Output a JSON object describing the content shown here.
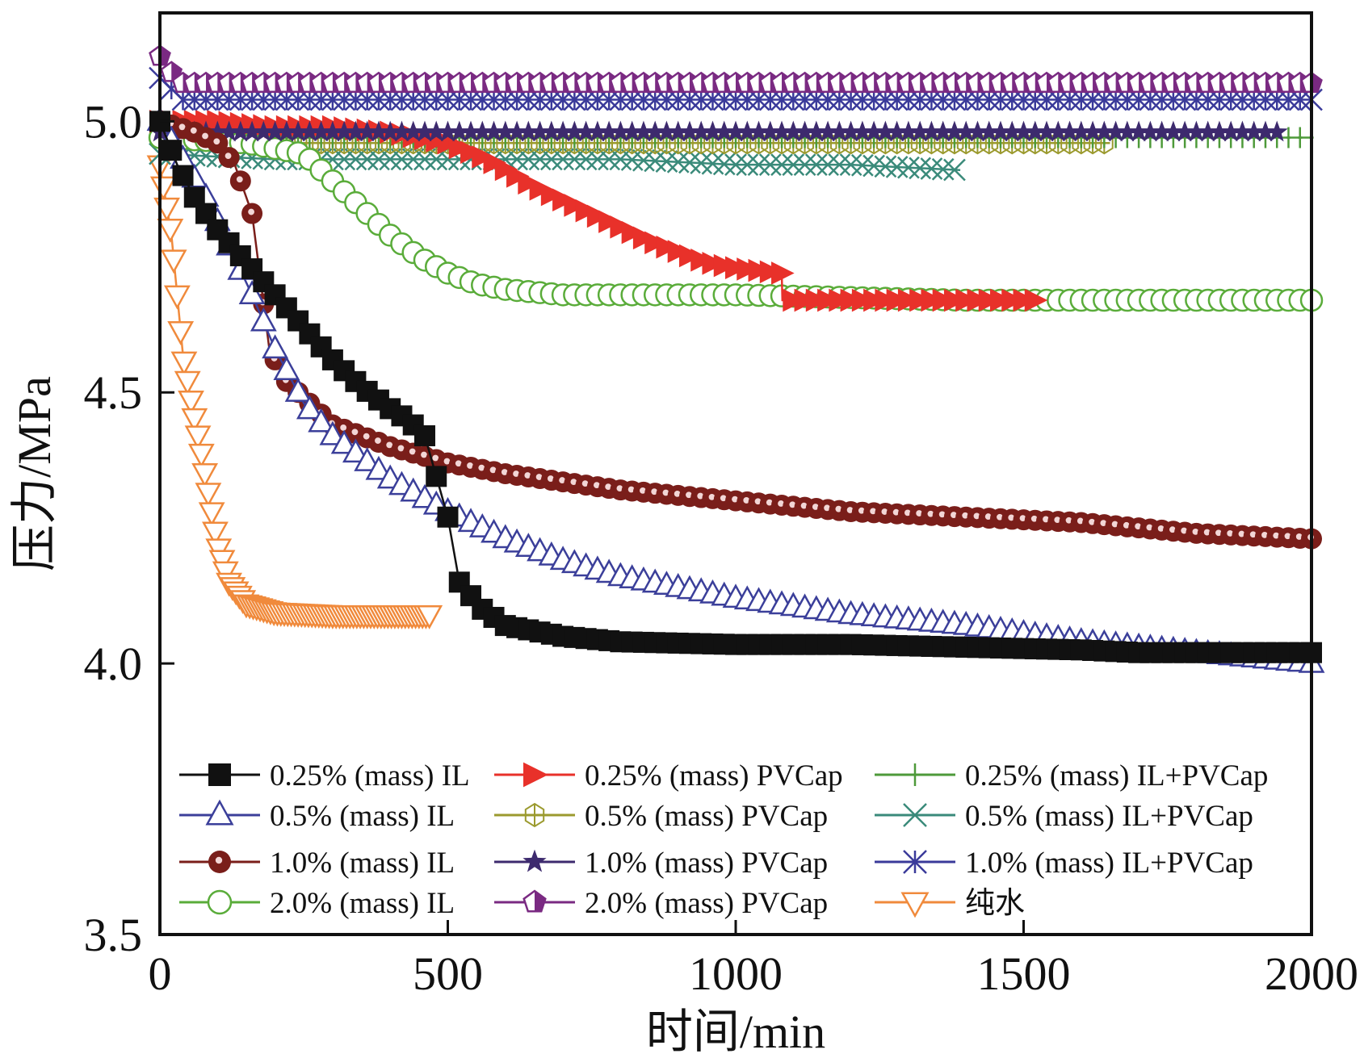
{
  "chart_data": {
    "type": "line",
    "title": "",
    "xlabel": "时间/min",
    "ylabel": "压力/MPa",
    "xlim": [
      0,
      2000
    ],
    "ylim": [
      3.5,
      5.2
    ],
    "xticks": [
      0,
      500,
      1000,
      1500,
      2000
    ],
    "xtick_labels": [
      "0",
      "500",
      "1000",
      "1500",
      "2000"
    ],
    "yticks": [
      3.5,
      4.0,
      4.5,
      5.0
    ],
    "ytick_labels": [
      "3.5",
      "4.0",
      "4.5",
      "5.0"
    ],
    "grid": false,
    "legend_position": "bottom-inside",
    "series": [
      {
        "name": "0.25% (mass) IL",
        "color": "#111111",
        "marker": "square-filled",
        "x": [
          0,
          30,
          60,
          100,
          150,
          200,
          250,
          300,
          350,
          400,
          430,
          460,
          500,
          520,
          560,
          600,
          700,
          800,
          1000,
          1200,
          1400,
          1600,
          1700,
          1800,
          2000
        ],
        "y": [
          5.0,
          4.92,
          4.86,
          4.8,
          4.74,
          4.68,
          4.62,
          4.56,
          4.51,
          4.47,
          4.45,
          4.42,
          4.27,
          4.15,
          4.1,
          4.07,
          4.05,
          4.04,
          4.035,
          4.035,
          4.03,
          4.025,
          4.02,
          4.02,
          4.02
        ]
      },
      {
        "name": "0.5% (mass) IL",
        "color": "#3b3f9a",
        "marker": "triangle-up-open",
        "x": [
          0,
          40,
          80,
          120,
          160,
          200,
          250,
          300,
          350,
          400,
          450,
          500,
          600,
          700,
          800,
          1000,
          1200,
          1400,
          1600,
          1800,
          2000
        ],
        "y": [
          5.0,
          4.93,
          4.86,
          4.77,
          4.68,
          4.58,
          4.48,
          4.42,
          4.38,
          4.34,
          4.31,
          4.28,
          4.23,
          4.19,
          4.16,
          4.12,
          4.09,
          4.07,
          4.04,
          4.02,
          4.0
        ]
      },
      {
        "name": "1.0% (mass) IL",
        "color": "#7a1e1a",
        "marker": "circle-filled",
        "x": [
          0,
          60,
          100,
          130,
          160,
          190,
          220,
          250,
          300,
          400,
          500,
          600,
          800,
          1000,
          1200,
          1400,
          1600,
          1800,
          2000
        ],
        "y": [
          5.0,
          4.98,
          4.96,
          4.92,
          4.83,
          4.58,
          4.52,
          4.49,
          4.44,
          4.4,
          4.37,
          4.35,
          4.32,
          4.3,
          4.28,
          4.27,
          4.26,
          4.24,
          4.23
        ]
      },
      {
        "name": "2.0% (mass) IL",
        "color": "#5aac3a",
        "marker": "circle-open",
        "x": [
          0,
          150,
          250,
          300,
          350,
          400,
          450,
          500,
          550,
          600,
          700,
          800,
          1000,
          1200,
          1400,
          1600,
          1800,
          2000
        ],
        "y": [
          4.97,
          4.96,
          4.94,
          4.89,
          4.84,
          4.79,
          4.75,
          4.72,
          4.7,
          4.69,
          4.68,
          4.68,
          4.68,
          4.675,
          4.67,
          4.67,
          4.67,
          4.67
        ]
      },
      {
        "name": "0.25% (mass) PVCap",
        "color": "#e8312a",
        "marker": "triangle-right-filled",
        "x": [
          0,
          100,
          200,
          300,
          400,
          500,
          570,
          650,
          750,
          850,
          950,
          1000,
          1080,
          1081,
          1200,
          1300,
          1400,
          1530
        ],
        "y": [
          5.0,
          5.0,
          4.99,
          4.99,
          4.98,
          4.96,
          4.93,
          4.88,
          4.83,
          4.78,
          4.74,
          4.73,
          4.72,
          4.67,
          4.67,
          4.67,
          4.67,
          4.67
        ]
      },
      {
        "name": "0.5% (mass) PVCap",
        "color": "#9b9a2e",
        "marker": "hexagon-cross-open",
        "x": [
          0,
          200,
          400,
          600,
          800,
          1000,
          1200,
          1400,
          1650
        ],
        "y": [
          4.97,
          4.96,
          4.96,
          4.96,
          4.96,
          4.96,
          4.96,
          4.96,
          4.96
        ]
      },
      {
        "name": "1.0% (mass) PVCap",
        "color": "#3d2a6e",
        "marker": "star-filled",
        "x": [
          0,
          200,
          400,
          600,
          800,
          1000,
          1200,
          1400,
          1600,
          1800,
          1940
        ],
        "y": [
          4.98,
          4.98,
          4.98,
          4.98,
          4.98,
          4.98,
          4.98,
          4.98,
          4.98,
          4.98,
          4.98
        ]
      },
      {
        "name": "2.0% (mass) PVCap",
        "color": "#7a2a82",
        "marker": "pentagon-half-filled",
        "x": [
          0,
          20,
          40,
          200,
          400,
          600,
          800,
          1000,
          1200,
          1400,
          1600,
          1800,
          2000
        ],
        "y": [
          5.12,
          5.09,
          5.07,
          5.07,
          5.07,
          5.07,
          5.07,
          5.07,
          5.07,
          5.07,
          5.07,
          5.07,
          5.07
        ]
      },
      {
        "name": "0.25% (mass) IL+PVCap",
        "color": "#4e9a3a",
        "marker": "plus",
        "x": [
          0,
          200,
          400,
          600,
          800,
          1000,
          1200,
          1400,
          1600,
          1800,
          2000
        ],
        "y": [
          4.97,
          4.97,
          4.97,
          4.97,
          4.97,
          4.97,
          4.97,
          4.97,
          4.97,
          4.97,
          4.97
        ]
      },
      {
        "name": "0.5% (mass) IL+PVCap",
        "color": "#3a8a7a",
        "marker": "x-cross",
        "x": [
          0,
          200,
          400,
          600,
          800,
          1000,
          1200,
          1390
        ],
        "y": [
          4.94,
          4.93,
          4.93,
          4.93,
          4.93,
          4.92,
          4.92,
          4.91
        ]
      },
      {
        "name": "1.0% (mass) IL+PVCap",
        "color": "#3a3a9a",
        "marker": "asterisk",
        "x": [
          0,
          20,
          40,
          200,
          400,
          600,
          800,
          1000,
          1200,
          1400,
          1600,
          1800,
          2000
        ],
        "y": [
          5.08,
          5.06,
          5.04,
          5.04,
          5.04,
          5.04,
          5.04,
          5.04,
          5.04,
          5.04,
          5.04,
          5.04,
          5.04
        ]
      },
      {
        "name": "纯水",
        "color": "#f08a3c",
        "marker": "triangle-down-open",
        "x": [
          0,
          20,
          40,
          55,
          70,
          85,
          100,
          120,
          150,
          200,
          300,
          400,
          470
        ],
        "y": [
          4.92,
          4.79,
          4.57,
          4.48,
          4.4,
          4.31,
          4.22,
          4.15,
          4.11,
          4.095,
          4.09,
          4.09,
          4.09
        ]
      }
    ]
  }
}
